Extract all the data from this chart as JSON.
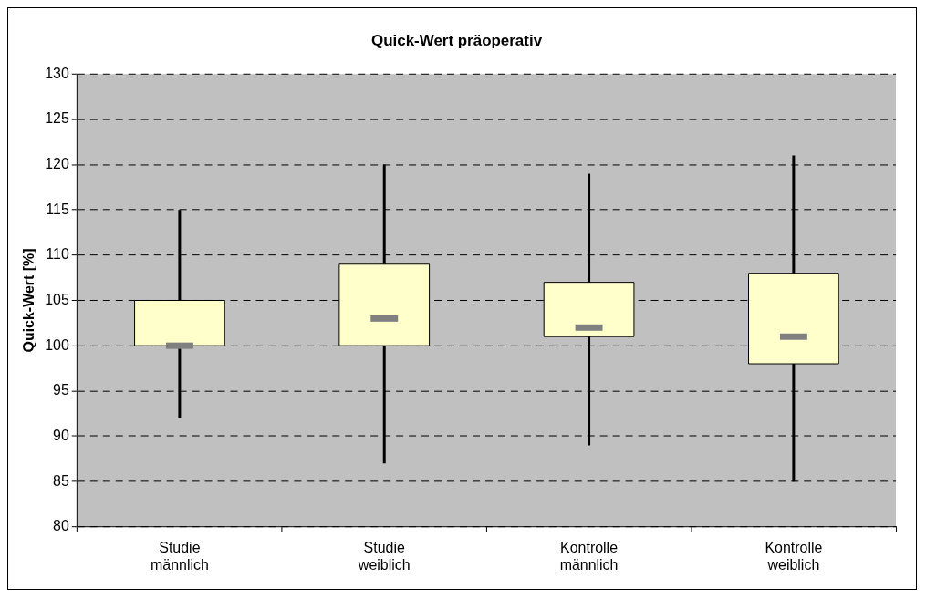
{
  "chart_data": {
    "type": "box",
    "title": "Quick-Wert präoperativ",
    "ylabel": "Quick-Wert [%]",
    "categories": [
      "Studie männlich",
      "Studie weiblich",
      "Kontrolle männlich",
      "Kontrolle weiblich"
    ],
    "boxes": [
      {
        "low": 92,
        "q1": 100,
        "median": 100,
        "q3": 105,
        "high": 115
      },
      {
        "low": 87,
        "q1": 100,
        "median": 103,
        "q3": 109,
        "high": 120
      },
      {
        "low": 89,
        "q1": 101,
        "median": 102,
        "q3": 107,
        "high": 119
      },
      {
        "low": 85,
        "q1": 98,
        "median": 101,
        "q3": 108,
        "high": 121
      }
    ],
    "color": "#ffffcc",
    "ylim": [
      80,
      130
    ],
    "yticks": [
      80,
      85,
      90,
      95,
      100,
      105,
      110,
      115,
      120,
      125,
      130
    ],
    "grid": "y",
    "legend": false
  }
}
